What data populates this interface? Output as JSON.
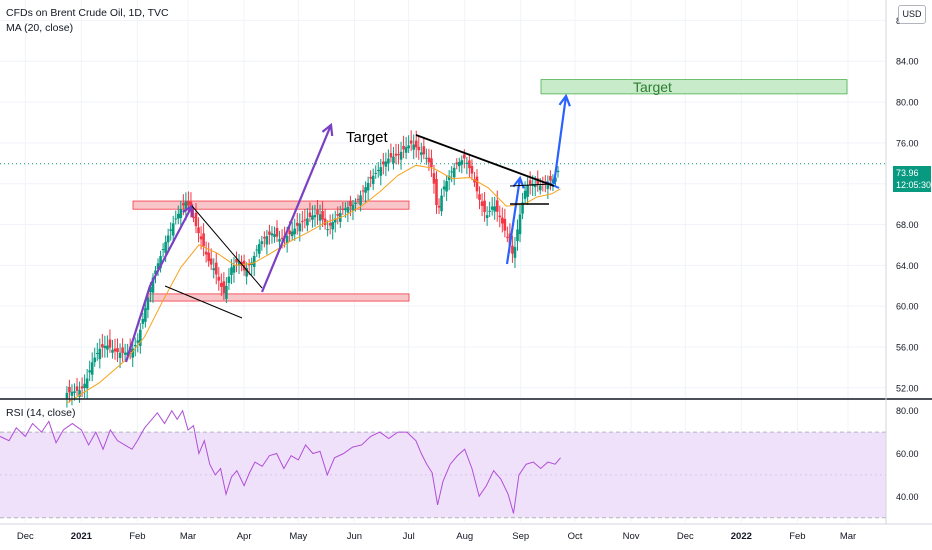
{
  "header": {
    "symbol_line": "CFDs on Brent Crude Oil, 1D, TVC",
    "ma_line": "MA (20, close)",
    "rsi_line": "RSI (14, close)",
    "currency": "USD"
  },
  "last_price": {
    "value": "73.96",
    "countdown": "12:05:30",
    "color": "#089981"
  },
  "colors": {
    "up": "#089981",
    "down": "#f23645",
    "ma": "#f7a21b",
    "rsi": "#b04fd6",
    "rsi_band": "#f0e1fb",
    "support_zone": "#f8c5c8",
    "target_zone": "#c8ecc9",
    "purple_arrow": "#7b3fc4",
    "blue_arrow": "#2962ff",
    "trendline": "#000000"
  },
  "annotations": {
    "target_left": "Target",
    "target_box": "Target"
  },
  "chart_data": [
    {
      "type": "candlestick",
      "title": "CFDs on Brent Crude Oil, 1D, TVC",
      "ylim": [
        51,
        90
      ],
      "y_ticks": [
        52,
        56,
        60,
        64,
        68,
        72,
        76,
        80,
        84,
        88
      ],
      "y_tick_labels": [
        "52.00",
        "56.00",
        "60.00",
        "64.00",
        "68.00",
        "72.00",
        "76.00",
        "80.00",
        "84.00",
        "88.00"
      ],
      "x_ticks": [
        "Dec",
        "2021",
        "Feb",
        "Mar",
        "Apr",
        "May",
        "Jun",
        "Jul",
        "Aug",
        "Sep",
        "Oct",
        "Nov",
        "Dec",
        "2022",
        "Feb",
        "Mar"
      ],
      "x_tick_days": [
        -31,
        0,
        31,
        59,
        90,
        120,
        151,
        181,
        212,
        243,
        273,
        304,
        334,
        365,
        396,
        424
      ],
      "xlim_days": [
        -45,
        445
      ],
      "last_price": 73.96,
      "support_zones": [
        [
          69.5,
          70.3
        ],
        [
          60.5,
          61.2
        ]
      ],
      "target_zone": [
        80.8,
        82.2
      ],
      "close_path": [
        [
          -8,
          51.5
        ],
        [
          0,
          51.8
        ],
        [
          3,
          52.8
        ],
        [
          6,
          54.5
        ],
        [
          10,
          55.8
        ],
        [
          14,
          56.2
        ],
        [
          18,
          55.6
        ],
        [
          22,
          55.4
        ],
        [
          27,
          55.5
        ],
        [
          31,
          56.5
        ],
        [
          35,
          59.5
        ],
        [
          39,
          62.5
        ],
        [
          43,
          64.5
        ],
        [
          47,
          66.5
        ],
        [
          51,
          68.2
        ],
        [
          55,
          69.5
        ],
        [
          58,
          70.3
        ],
        [
          61,
          69.2
        ],
        [
          64,
          67.5
        ],
        [
          67,
          66.2
        ],
        [
          70,
          64.5
        ],
        [
          73,
          63.8
        ],
        [
          76,
          62.5
        ],
        [
          79,
          61.2
        ],
        [
          83,
          63.8
        ],
        [
          87,
          64.5
        ],
        [
          90,
          63.5
        ],
        [
          94,
          64.2
        ],
        [
          98,
          66.0
        ],
        [
          102,
          66.8
        ],
        [
          106,
          67.2
        ],
        [
          110,
          66.5
        ],
        [
          115,
          67.0
        ],
        [
          120,
          68.0
        ],
        [
          124,
          68.5
        ],
        [
          128,
          68.9
        ],
        [
          132,
          69.0
        ],
        [
          136,
          67.5
        ],
        [
          140,
          68.5
        ],
        [
          145,
          69.5
        ],
        [
          151,
          70.0
        ],
        [
          155,
          71.0
        ],
        [
          160,
          72.5
        ],
        [
          165,
          73.5
        ],
        [
          170,
          74.5
        ],
        [
          175,
          74.8
        ],
        [
          179,
          75.5
        ],
        [
          183,
          76.0
        ],
        [
          187,
          75.2
        ],
        [
          190,
          74.8
        ],
        [
          194,
          73.5
        ],
        [
          197,
          69.0
        ],
        [
          200,
          71.5
        ],
        [
          204,
          73.0
        ],
        [
          208,
          74.0
        ],
        [
          212,
          74.5
        ],
        [
          216,
          73.0
        ],
        [
          220,
          70.5
        ],
        [
          224,
          68.8
        ],
        [
          228,
          70.0
        ],
        [
          232,
          68.5
        ],
        [
          236,
          66.5
        ],
        [
          239,
          64.8
        ],
        [
          242,
          68.5
        ],
        [
          246,
          71.8
        ],
        [
          250,
          72.0
        ],
        [
          254,
          71.8
        ],
        [
          258,
          72.2
        ],
        [
          262,
          72.5
        ],
        [
          265,
          73.96
        ]
      ],
      "ma_path": [
        [
          -8,
          50.5
        ],
        [
          10,
          52.5
        ],
        [
          25,
          54.8
        ],
        [
          35,
          57.0
        ],
        [
          45,
          60.5
        ],
        [
          55,
          63.8
        ],
        [
          65,
          66.0
        ],
        [
          75,
          65.2
        ],
        [
          85,
          64.0
        ],
        [
          95,
          64.2
        ],
        [
          105,
          65.2
        ],
        [
          115,
          66.3
        ],
        [
          125,
          67.2
        ],
        [
          135,
          68.2
        ],
        [
          145,
          68.8
        ],
        [
          155,
          69.8
        ],
        [
          165,
          71.2
        ],
        [
          175,
          72.8
        ],
        [
          185,
          73.8
        ],
        [
          195,
          73.5
        ],
        [
          205,
          72.5
        ],
        [
          215,
          72.6
        ],
        [
          225,
          71.6
        ],
        [
          235,
          69.8
        ],
        [
          245,
          70.0
        ],
        [
          252,
          70.7
        ],
        [
          260,
          71.0
        ],
        [
          265,
          71.5
        ]
      ]
    },
    {
      "type": "line",
      "title": "RSI (14, close)",
      "ylim": [
        28,
        85
      ],
      "y_ticks": [
        40,
        60,
        80
      ],
      "y_tick_labels": [
        "40.00",
        "60.00",
        "80.00"
      ],
      "band": [
        30,
        70
      ],
      "values": [
        [
          -45,
          68
        ],
        [
          -40,
          66
        ],
        [
          -36,
          72
        ],
        [
          -31,
          68
        ],
        [
          -27,
          74
        ],
        [
          -22,
          70
        ],
        [
          -18,
          75
        ],
        [
          -14,
          65
        ],
        [
          -10,
          71
        ],
        [
          -5,
          74
        ],
        [
          0,
          71
        ],
        [
          4,
          64
        ],
        [
          8,
          70
        ],
        [
          12,
          62
        ],
        [
          16,
          71
        ],
        [
          20,
          66
        ],
        [
          24,
          64
        ],
        [
          28,
          62
        ],
        [
          31,
          66
        ],
        [
          35,
          72
        ],
        [
          39,
          76
        ],
        [
          42,
          79
        ],
        [
          46,
          74
        ],
        [
          50,
          80
        ],
        [
          53,
          76
        ],
        [
          56,
          80
        ],
        [
          59,
          71
        ],
        [
          62,
          73
        ],
        [
          65,
          60
        ],
        [
          68,
          66
        ],
        [
          71,
          55
        ],
        [
          74,
          50
        ],
        [
          77,
          53
        ],
        [
          80,
          41
        ],
        [
          83,
          49
        ],
        [
          86,
          52
        ],
        [
          90,
          45
        ],
        [
          93,
          51
        ],
        [
          96,
          56
        ],
        [
          100,
          54
        ],
        [
          104,
          59
        ],
        [
          108,
          60
        ],
        [
          112,
          53
        ],
        [
          116,
          59
        ],
        [
          120,
          57
        ],
        [
          124,
          64
        ],
        [
          128,
          60
        ],
        [
          132,
          61
        ],
        [
          136,
          50
        ],
        [
          140,
          58
        ],
        [
          145,
          60
        ],
        [
          150,
          63
        ],
        [
          155,
          64
        ],
        [
          160,
          68
        ],
        [
          165,
          70
        ],
        [
          170,
          67
        ],
        [
          175,
          70
        ],
        [
          180,
          70
        ],
        [
          185,
          66
        ],
        [
          188,
          60
        ],
        [
          191,
          55
        ],
        [
          194,
          51
        ],
        [
          197,
          36
        ],
        [
          200,
          47
        ],
        [
          204,
          55
        ],
        [
          208,
          59
        ],
        [
          212,
          62
        ],
        [
          216,
          53
        ],
        [
          220,
          40
        ],
        [
          224,
          45
        ],
        [
          228,
          52
        ],
        [
          232,
          48
        ],
        [
          236,
          41
        ],
        [
          239,
          32
        ],
        [
          242,
          50
        ],
        [
          246,
          55
        ],
        [
          250,
          56
        ],
        [
          254,
          53
        ],
        [
          258,
          56
        ],
        [
          262,
          55
        ],
        [
          265,
          58
        ]
      ]
    }
  ]
}
